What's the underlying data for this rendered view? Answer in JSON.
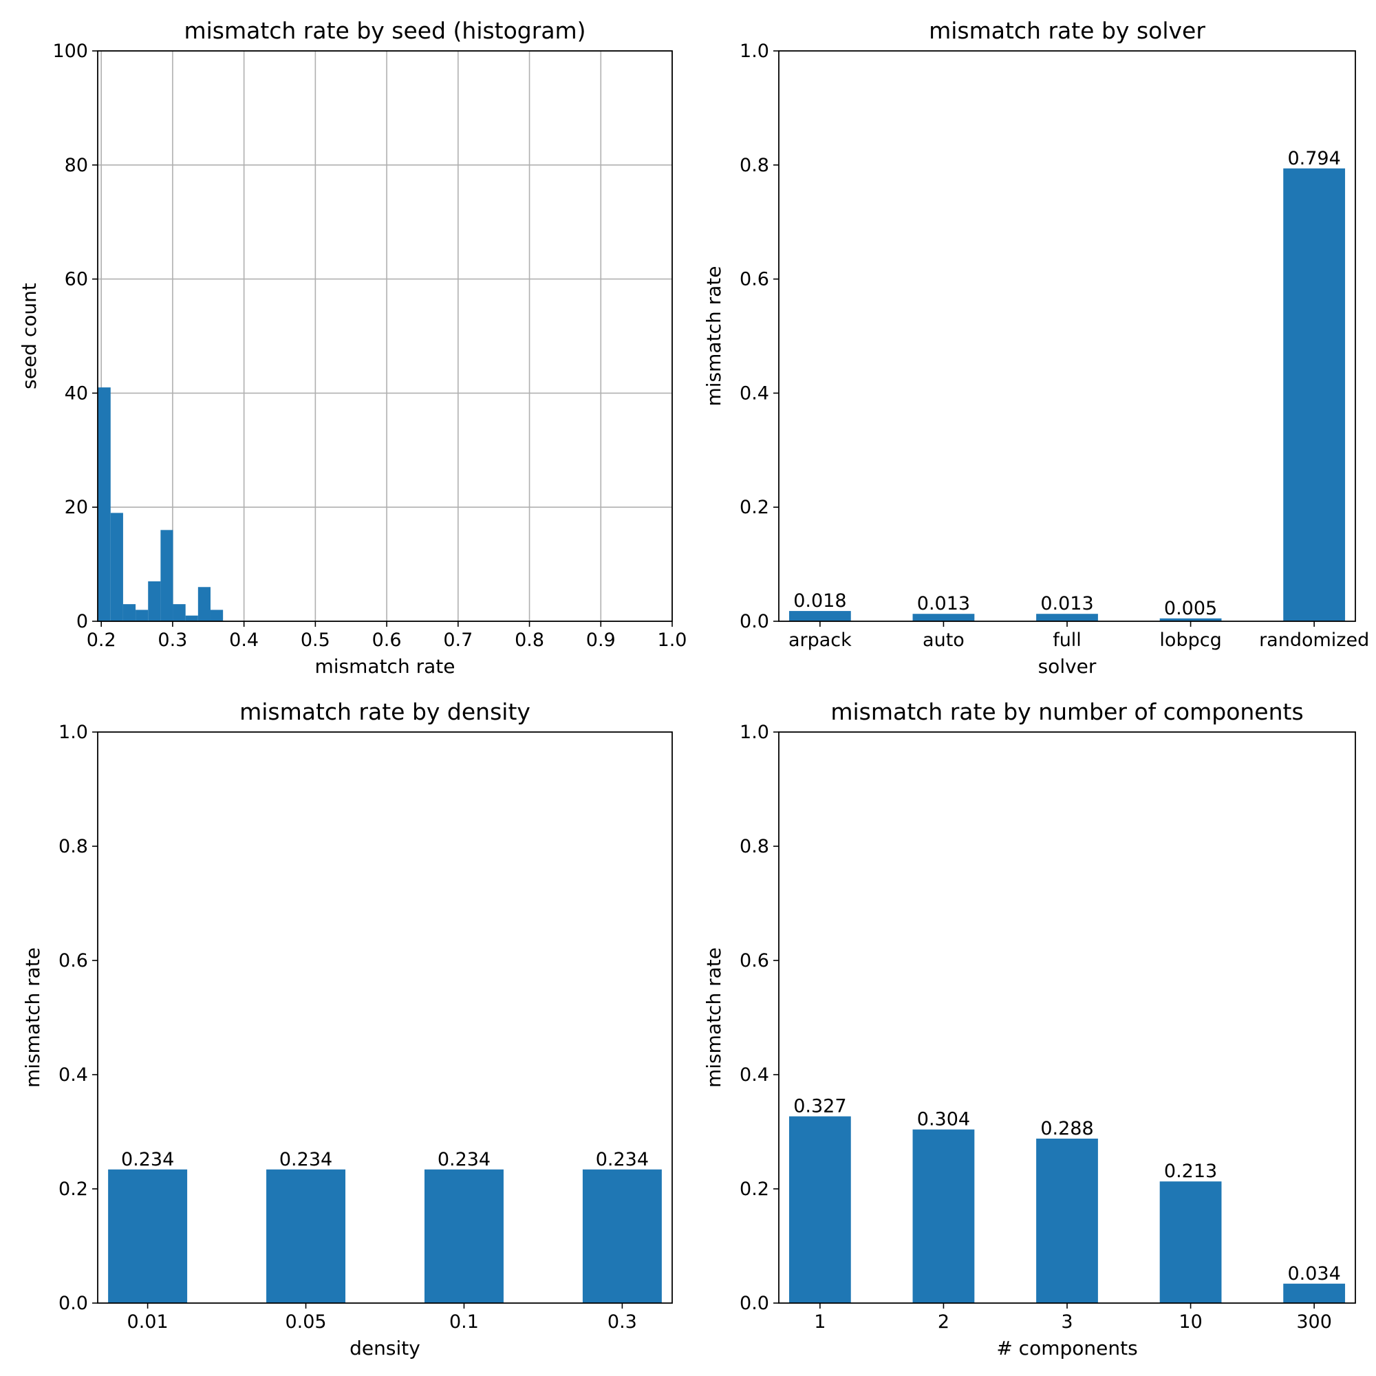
{
  "colors": {
    "bar": "#1f77b4",
    "grid": "#b0b0b0",
    "axis": "#000000"
  },
  "chart_data": [
    {
      "type": "bar",
      "subtype": "histogram",
      "title": "mismatch rate by seed (histogram)",
      "xlabel": "mismatch rate",
      "ylabel": "seed count",
      "xlim": [
        0.195,
        1.0
      ],
      "ylim": [
        0,
        100
      ],
      "xticks": [
        0.2,
        0.3,
        0.4,
        0.5,
        0.6,
        0.7,
        0.8,
        0.9,
        1.0
      ],
      "xtick_labels": [
        "0.2",
        "0.3",
        "0.4",
        "0.5",
        "0.6",
        "0.7",
        "0.8",
        "0.9",
        "1.0"
      ],
      "yticks": [
        0,
        20,
        40,
        60,
        80,
        100
      ],
      "ytick_labels": [
        "0",
        "20",
        "40",
        "60",
        "80",
        "100"
      ],
      "grid": true,
      "bins": [
        {
          "x0": 0.1956,
          "x1": 0.2131,
          "count": 41
        },
        {
          "x0": 0.2131,
          "x1": 0.2306,
          "count": 19
        },
        {
          "x0": 0.2306,
          "x1": 0.2481,
          "count": 3
        },
        {
          "x0": 0.2481,
          "x1": 0.2656,
          "count": 2
        },
        {
          "x0": 0.2656,
          "x1": 0.2831,
          "count": 7
        },
        {
          "x0": 0.2831,
          "x1": 0.3006,
          "count": 16
        },
        {
          "x0": 0.3006,
          "x1": 0.3181,
          "count": 3
        },
        {
          "x0": 0.3181,
          "x1": 0.3356,
          "count": 1
        },
        {
          "x0": 0.3356,
          "x1": 0.3531,
          "count": 6
        },
        {
          "x0": 0.3531,
          "x1": 0.3706,
          "count": 2
        }
      ]
    },
    {
      "type": "bar",
      "title": "mismatch rate by solver",
      "xlabel": "solver",
      "ylabel": "mismatch rate",
      "ylim": [
        0,
        1.0
      ],
      "yticks": [
        0,
        0.2,
        0.4,
        0.6,
        0.8,
        1.0
      ],
      "ytick_labels": [
        "0.0",
        "0.2",
        "0.4",
        "0.6",
        "0.8",
        "1.0"
      ],
      "grid": false,
      "categories": [
        "arpack",
        "auto",
        "full",
        "lobpcg",
        "randomized"
      ],
      "values": [
        0.018,
        0.013,
        0.013,
        0.005,
        0.794
      ],
      "value_labels": [
        "0.018",
        "0.013",
        "0.013",
        "0.005",
        "0.794"
      ]
    },
    {
      "type": "bar",
      "title": "mismatch rate by density",
      "xlabel": "density",
      "ylabel": "mismatch rate",
      "ylim": [
        0,
        1.0
      ],
      "yticks": [
        0,
        0.2,
        0.4,
        0.6,
        0.8,
        1.0
      ],
      "ytick_labels": [
        "0.0",
        "0.2",
        "0.4",
        "0.6",
        "0.8",
        "1.0"
      ],
      "grid": false,
      "categories": [
        "0.01",
        "0.05",
        "0.1",
        "0.3"
      ],
      "values": [
        0.234,
        0.234,
        0.234,
        0.234
      ],
      "value_labels": [
        "0.234",
        "0.234",
        "0.234",
        "0.234"
      ]
    },
    {
      "type": "bar",
      "title": "mismatch rate by number of components",
      "xlabel": "# components",
      "ylabel": "mismatch rate",
      "ylim": [
        0,
        1.0
      ],
      "yticks": [
        0,
        0.2,
        0.4,
        0.6,
        0.8,
        1.0
      ],
      "ytick_labels": [
        "0.0",
        "0.2",
        "0.4",
        "0.6",
        "0.8",
        "1.0"
      ],
      "grid": false,
      "categories": [
        "1",
        "2",
        "3",
        "10",
        "300"
      ],
      "values": [
        0.327,
        0.304,
        0.288,
        0.213,
        0.034
      ],
      "value_labels": [
        "0.327",
        "0.304",
        "0.288",
        "0.213",
        "0.034"
      ]
    }
  ]
}
